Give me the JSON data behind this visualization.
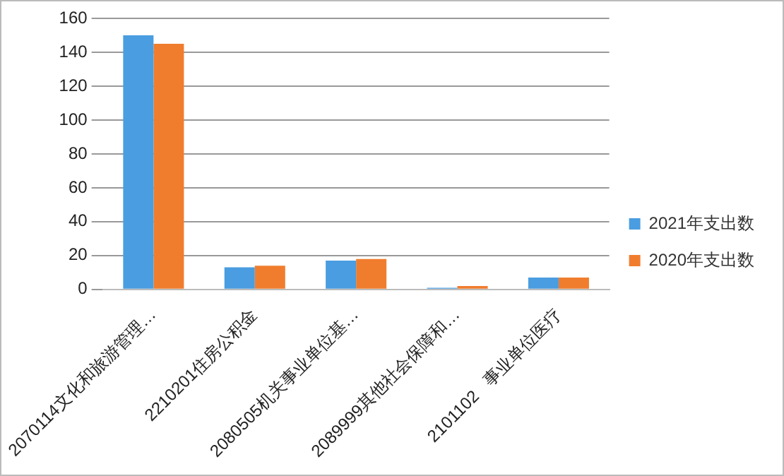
{
  "chart_data": {
    "type": "bar",
    "categories": [
      "2070114文化和旅游管理…",
      "2210201住房公积金",
      "2080505机关事业单位基…",
      "2089999其他社会保障和…",
      "2101102   事业单位医疗"
    ],
    "series": [
      {
        "name": "2021年支出数",
        "color": "#4a9de0",
        "values": [
          150,
          13,
          17,
          1,
          7
        ]
      },
      {
        "name": "2020年支出数",
        "color": "#f07d2e",
        "values": [
          145,
          14,
          18,
          2,
          7
        ]
      }
    ],
    "ylim": [
      0,
      160
    ],
    "yticks": [
      0,
      20,
      40,
      60,
      80,
      100,
      120,
      140,
      160
    ],
    "grid": "y",
    "legend": "right"
  }
}
